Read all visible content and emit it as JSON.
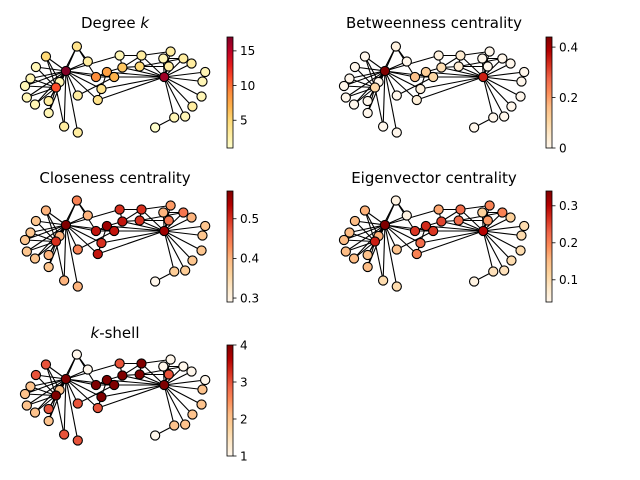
{
  "figure": {
    "description_free": true
  },
  "chart_data": {
    "type": "network",
    "nodes": [
      {
        "id": 0,
        "x": 0.285,
        "y": 0.045
      },
      {
        "id": 1,
        "x": 0.115,
        "y": 0.145
      },
      {
        "id": 2,
        "x": 0.345,
        "y": 0.195
      },
      {
        "id": 3,
        "x": 0.52,
        "y": 0.135
      },
      {
        "id": 4,
        "x": 0.64,
        "y": 0.135
      },
      {
        "id": 5,
        "x": 0.76,
        "y": 0.165
      },
      {
        "id": 6,
        "x": 0.8,
        "y": 0.095
      },
      {
        "id": 7,
        "x": 0.87,
        "y": 0.165
      },
      {
        "id": 8,
        "x": 0.79,
        "y": 0.245
      },
      {
        "id": 9,
        "x": 0.915,
        "y": 0.215
      },
      {
        "id": 10,
        "x": 0.99,
        "y": 0.3
      },
      {
        "id": 11,
        "x": 0.975,
        "y": 0.395
      },
      {
        "id": 12,
        "x": 0.97,
        "y": 0.545
      },
      {
        "id": 13,
        "x": 0.92,
        "y": 0.645
      },
      {
        "id": 14,
        "x": 0.88,
        "y": 0.745
      },
      {
        "id": 15,
        "x": 0.82,
        "y": 0.755
      },
      {
        "id": 16,
        "x": 0.715,
        "y": 0.855
      },
      {
        "id": 17,
        "x": 0.765,
        "y": 0.35
      },
      {
        "id": 18,
        "x": 0.63,
        "y": 0.245
      },
      {
        "id": 19,
        "x": 0.535,
        "y": 0.255
      },
      {
        "id": 20,
        "x": 0.45,
        "y": 0.3
      },
      {
        "id": 21,
        "x": 0.39,
        "y": 0.35
      },
      {
        "id": 22,
        "x": 0.4,
        "y": 0.58
      },
      {
        "id": 23,
        "x": 0.29,
        "y": 0.535
      },
      {
        "id": 24,
        "x": 0.225,
        "y": 0.29
      },
      {
        "id": 25,
        "x": 0.06,
        "y": 0.25
      },
      {
        "id": 26,
        "x": 0.03,
        "y": 0.365
      },
      {
        "id": 27,
        "x": 0.0,
        "y": 0.44
      },
      {
        "id": 28,
        "x": 0.01,
        "y": 0.555
      },
      {
        "id": 29,
        "x": 0.055,
        "y": 0.625
      },
      {
        "id": 30,
        "x": 0.13,
        "y": 0.71
      },
      {
        "id": 31,
        "x": 0.19,
        "y": 0.4
      },
      {
        "id": 32,
        "x": 0.17,
        "y": 0.455
      },
      {
        "id": 33,
        "x": 0.13,
        "y": 0.59
      },
      {
        "id": 34,
        "x": 0.215,
        "y": 0.845
      },
      {
        "id": 35,
        "x": 0.29,
        "y": 0.905
      },
      {
        "id": 36,
        "x": 0.49,
        "y": 0.35
      },
      {
        "id": 37,
        "x": 0.42,
        "y": 0.47
      }
    ],
    "edges": [
      [
        24,
        0
      ],
      [
        24,
        1
      ],
      [
        24,
        2
      ],
      [
        24,
        31
      ],
      [
        24,
        32
      ],
      [
        24,
        33
      ],
      [
        24,
        34
      ],
      [
        24,
        35
      ],
      [
        24,
        36
      ],
      [
        24,
        37
      ],
      [
        24,
        21
      ],
      [
        24,
        22
      ],
      [
        24,
        23
      ],
      [
        24,
        25
      ],
      [
        24,
        26
      ],
      [
        24,
        27
      ],
      [
        24,
        28
      ],
      [
        24,
        29
      ],
      [
        24,
        30
      ],
      [
        24,
        3
      ],
      [
        32,
        1
      ],
      [
        32,
        25
      ],
      [
        32,
        26
      ],
      [
        32,
        27
      ],
      [
        32,
        28
      ],
      [
        32,
        29
      ],
      [
        32,
        30
      ],
      [
        32,
        33
      ],
      [
        32,
        0
      ],
      [
        32,
        34
      ],
      [
        17,
        5
      ],
      [
        17,
        6
      ],
      [
        17,
        7
      ],
      [
        17,
        8
      ],
      [
        17,
        9
      ],
      [
        17,
        10
      ],
      [
        17,
        11
      ],
      [
        17,
        12
      ],
      [
        17,
        13
      ],
      [
        17,
        14
      ],
      [
        17,
        15
      ],
      [
        17,
        18
      ],
      [
        17,
        19
      ],
      [
        17,
        20
      ],
      [
        17,
        36
      ],
      [
        17,
        37
      ],
      [
        17,
        4
      ],
      [
        17,
        22
      ],
      [
        20,
        21
      ],
      [
        20,
        19
      ],
      [
        20,
        36
      ],
      [
        36,
        21
      ],
      [
        21,
        0
      ],
      [
        18,
        19
      ],
      [
        18,
        4
      ],
      [
        18,
        8
      ],
      [
        18,
        7
      ],
      [
        19,
        3
      ],
      [
        19,
        4
      ],
      [
        3,
        4
      ],
      [
        4,
        6
      ],
      [
        5,
        7
      ],
      [
        16,
        15
      ],
      [
        20,
        22
      ],
      [
        36,
        23
      ],
      [
        37,
        22
      ],
      [
        0,
        2
      ],
      [
        31,
        1
      ]
    ],
    "panels": [
      {
        "title_pre": "Degree ",
        "title_var": "k",
        "title_post": "",
        "cbar_min": 1,
        "cbar_max": 17,
        "ticks": [
          5,
          10,
          15
        ],
        "values": [
          4,
          5,
          3,
          2,
          3,
          2,
          3,
          3,
          3,
          3,
          2,
          2,
          2,
          3,
          2,
          2,
          1,
          16,
          5,
          6,
          8,
          9,
          4,
          3,
          17,
          2,
          2,
          2,
          2,
          2,
          2,
          2,
          11,
          3,
          3,
          3,
          7,
          4
        ]
      },
      {
        "title_pre": "Betweenness centrality",
        "title_var": "",
        "title_post": "",
        "cbar_min": 0,
        "cbar_max": 0.44,
        "ticks": [
          0.0,
          0.2,
          0.4
        ],
        "values": [
          0.02,
          0.0,
          0.0,
          0.02,
          0.04,
          0.0,
          0.0,
          0.0,
          0.0,
          0.0,
          0.0,
          0.0,
          0.0,
          0.0,
          0.0,
          0.0,
          0.0,
          0.35,
          0.04,
          0.08,
          0.12,
          0.15,
          0.03,
          0.0,
          0.44,
          0.0,
          0.0,
          0.0,
          0.0,
          0.0,
          0.0,
          0.0,
          0.1,
          0.0,
          0.0,
          0.0,
          0.1,
          0.02
        ]
      },
      {
        "title_pre": "Closeness centrality",
        "title_var": "",
        "title_post": "",
        "cbar_min": 0.29,
        "cbar_max": 0.57,
        "ticks": [
          0.3,
          0.4,
          0.5
        ],
        "values": [
          0.44,
          0.4,
          0.4,
          0.5,
          0.5,
          0.4,
          0.42,
          0.45,
          0.45,
          0.4,
          0.38,
          0.38,
          0.38,
          0.38,
          0.37,
          0.37,
          0.29,
          0.55,
          0.5,
          0.52,
          0.55,
          0.52,
          0.52,
          0.44,
          0.57,
          0.38,
          0.38,
          0.38,
          0.38,
          0.38,
          0.38,
          0.4,
          0.5,
          0.4,
          0.4,
          0.4,
          0.52,
          0.5
        ]
      },
      {
        "title_pre": "Eigenvector centrality",
        "title_var": "",
        "title_post": "",
        "cbar_min": 0.04,
        "cbar_max": 0.34,
        "ticks": [
          0.1,
          0.2,
          0.3
        ],
        "values": [
          0.05,
          0.16,
          0.05,
          0.17,
          0.22,
          0.12,
          0.2,
          0.2,
          0.18,
          0.12,
          0.1,
          0.1,
          0.1,
          0.1,
          0.09,
          0.09,
          0.05,
          0.3,
          0.22,
          0.25,
          0.27,
          0.26,
          0.2,
          0.14,
          0.34,
          0.15,
          0.15,
          0.15,
          0.15,
          0.15,
          0.15,
          0.16,
          0.28,
          0.14,
          0.1,
          0.1,
          0.26,
          0.22
        ]
      },
      {
        "title_pre": "",
        "title_var": "k",
        "title_post": "-shell",
        "cbar_min": 1,
        "cbar_max": 4,
        "ticks": [
          1,
          2,
          3,
          4
        ],
        "values": [
          1,
          3,
          1,
          3,
          4,
          1,
          1,
          1,
          3,
          1,
          1,
          2,
          2,
          2,
          2,
          2,
          1,
          4,
          4,
          4,
          4,
          4,
          3,
          3,
          4,
          3,
          2,
          2,
          2,
          2,
          2,
          2,
          4,
          3,
          3,
          3,
          4,
          4
        ]
      }
    ]
  }
}
